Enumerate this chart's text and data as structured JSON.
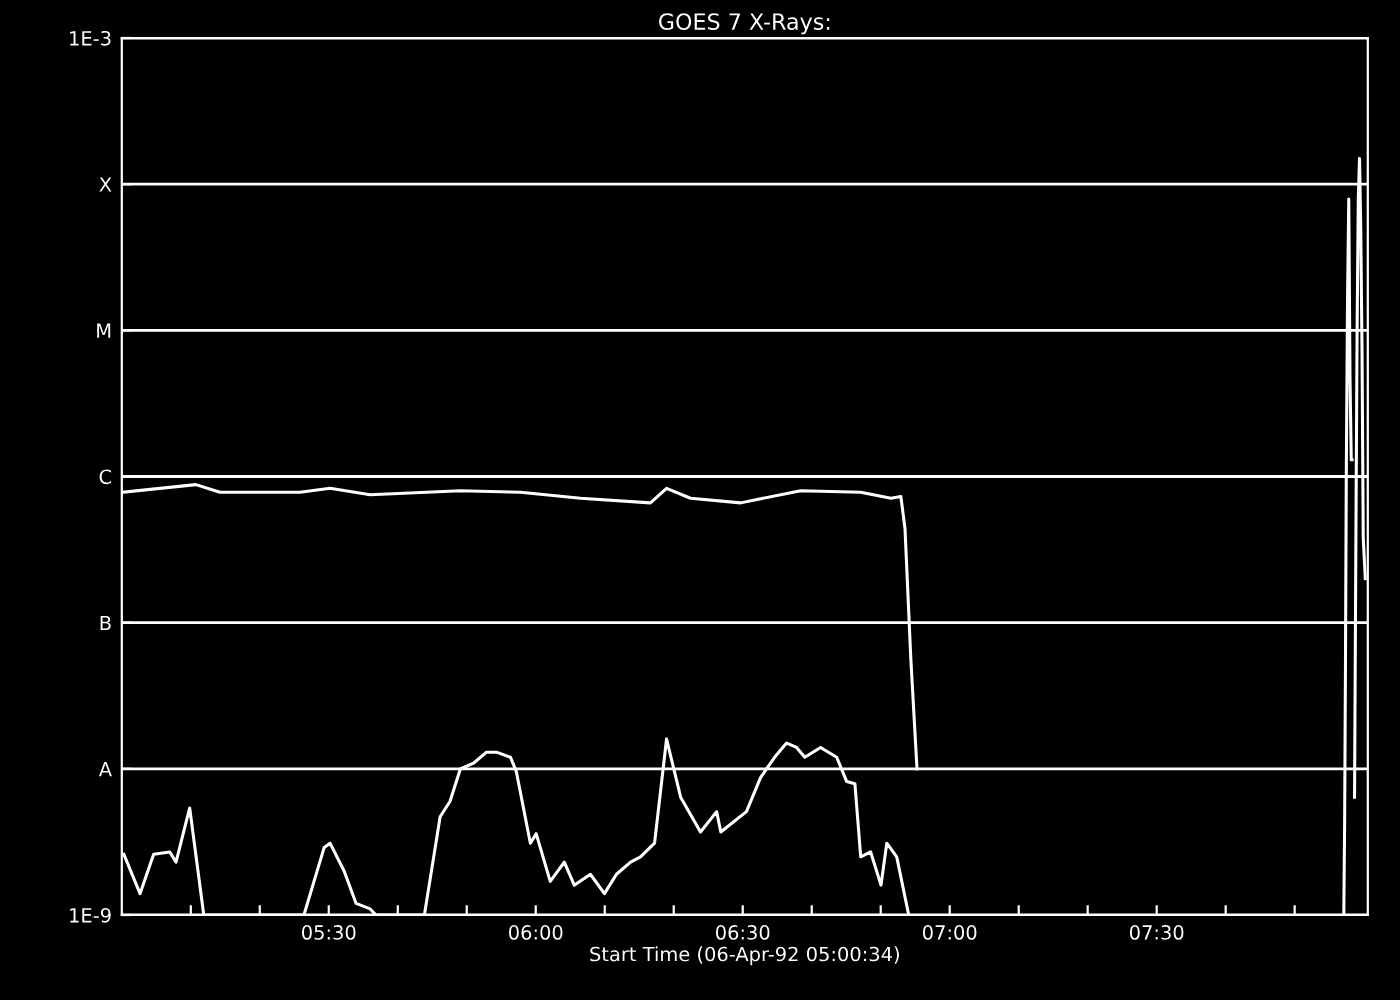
{
  "chart_data": {
    "type": "line",
    "title": "GOES 7 X-Rays:",
    "xlabel": "Start Time (06-Apr-92 05:00:34)",
    "log": "y",
    "grid": "y",
    "marker": "none",
    "line_style": "solid",
    "xlim": [
      5.0,
      8.01
    ],
    "ylim": [
      1e-09,
      0.001
    ],
    "xticks": [
      {
        "value": 5.1667,
        "label": null
      },
      {
        "value": 5.3333,
        "label": null
      },
      {
        "value": 5.5,
        "label": "05:30"
      },
      {
        "value": 5.6667,
        "label": null
      },
      {
        "value": 5.8333,
        "label": null
      },
      {
        "value": 6,
        "label": "06:00"
      },
      {
        "value": 6.1667,
        "label": null
      },
      {
        "value": 6.3333,
        "label": null
      },
      {
        "value": 6.5,
        "label": "06:30"
      },
      {
        "value": 6.6667,
        "label": null
      },
      {
        "value": 6.8333,
        "label": null
      },
      {
        "value": 7,
        "label": "07:00"
      },
      {
        "value": 7.1667,
        "label": null
      },
      {
        "value": 7.3333,
        "label": null
      },
      {
        "value": 7.5,
        "label": "07:30"
      },
      {
        "value": 7.6667,
        "label": null
      },
      {
        "value": 7.8333,
        "label": null
      }
    ],
    "yticks": [
      {
        "value": 1e-09,
        "label": "1E-9"
      },
      {
        "value": 1e-08,
        "label": "A"
      },
      {
        "value": 1e-07,
        "label": "B"
      },
      {
        "value": 1e-06,
        "label": "C"
      },
      {
        "value": 1e-05,
        "label": "M"
      },
      {
        "value": 0.0001,
        "label": "X"
      },
      {
        "value": 0.001,
        "label": "1E-3"
      }
    ],
    "series": [
      {
        "color": "#ffffff",
        "x": [
          5.0,
          5.179,
          5.237,
          5.431,
          5.503,
          5.6,
          5.818,
          5.963,
          6.108,
          6.277,
          6.316,
          6.374,
          6.495,
          6.64,
          6.785,
          6.858,
          6.882,
          6.892,
          6.906,
          6.921,
          7.5,
          7.978,
          7.981,
          7.984,
          7.987,
          7.99,
          7.993,
          7.996,
          7.999,
          8.004
        ],
        "values": [
          7.8e-07,
          8.8e-07,
          7.8e-07,
          7.8e-07,
          8.3e-07,
          7.5e-07,
          8e-07,
          7.8e-07,
          7.1e-07,
          6.6e-07,
          8.3e-07,
          7.1e-07,
          6.6e-07,
          8e-07,
          7.8e-07,
          7.1e-07,
          7.3e-07,
          4.4e-07,
          5.7e-08,
          1e-08,
          null,
          6.4e-09,
          2.8e-07,
          8.7e-06,
          7.9e-05,
          0.00015,
          4.9e-05,
          7.5e-06,
          3.8e-07,
          2e-07
        ]
      },
      {
        "color": "#ffffff",
        "x": [
          5.005,
          5.044,
          5.077,
          5.116,
          5.131,
          5.164,
          5.198,
          5.44,
          5.489,
          5.503,
          5.537,
          5.566,
          5.6,
          5.614,
          5.731,
          5.769,
          5.793,
          5.818,
          5.851,
          5.881,
          5.905,
          5.939,
          5.953,
          5.987,
          6.001,
          6.035,
          6.069,
          6.093,
          6.132,
          6.166,
          6.195,
          6.229,
          6.253,
          6.287,
          6.316,
          6.35,
          6.398,
          6.437,
          6.447,
          6.509,
          6.543,
          6.577,
          6.606,
          6.63,
          6.65,
          6.688,
          6.727,
          6.751,
          6.771,
          6.785,
          6.809,
          6.834,
          6.848,
          6.872,
          6.901,
          7.5,
          7.952,
          7.954,
          7.956,
          7.958,
          7.961,
          7.964,
          7.967,
          7.97,
          7.972
        ],
        "values": [
          2.6e-09,
          1.4e-09,
          2.6e-09,
          2.7e-09,
          2.3e-09,
          5.4e-09,
          1e-09,
          1e-09,
          2.9e-09,
          3.1e-09,
          2e-09,
          1.2e-09,
          1.1e-09,
          1e-09,
          1e-09,
          4.7e-09,
          6e-09,
          1e-08,
          1.1e-08,
          1.3e-08,
          1.3e-08,
          1.2e-08,
          9.6e-09,
          3.1e-09,
          3.6e-09,
          1.7e-09,
          2.3e-09,
          1.6e-09,
          1.9e-09,
          1.4e-09,
          1.9e-09,
          2.3e-09,
          2.5e-09,
          3.1e-09,
          1.6e-08,
          6.4e-09,
          3.7e-09,
          5.1e-09,
          3.7e-09,
          5.1e-09,
          8.7e-09,
          1.2e-08,
          1.5e-08,
          1.4e-08,
          1.2e-08,
          1.4e-08,
          1.2e-08,
          8.2e-09,
          7.9e-09,
          2.5e-09,
          2.7e-09,
          1.6e-09,
          3.1e-09,
          2.5e-09,
          1e-09,
          null,
          1e-09,
          4.2e-09,
          4.9e-08,
          9.7e-07,
          1.6e-05,
          7.9e-05,
          4.7e-06,
          1.3e-06,
          1.3e-06
        ]
      }
    ]
  }
}
